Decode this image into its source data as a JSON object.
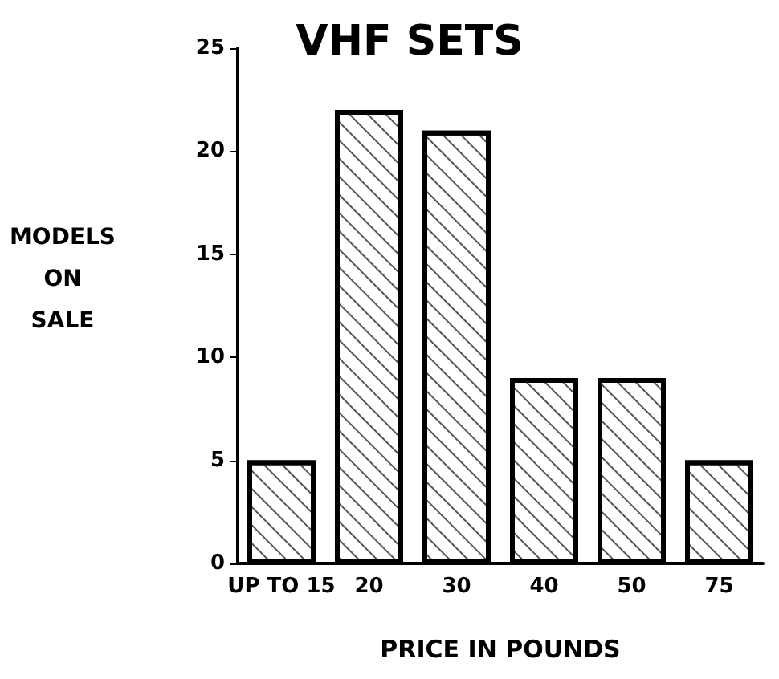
{
  "chart_data": {
    "type": "bar",
    "title": "VHF SETS",
    "xlabel": "PRICE IN POUNDS",
    "ylabel": "MODELS ON SALE",
    "categories": [
      "UP TO 15",
      "20",
      "30",
      "40",
      "50",
      "75"
    ],
    "values": [
      5,
      22,
      21,
      9,
      9,
      5
    ],
    "color": "#ffffff",
    "ylim": [
      0,
      25
    ],
    "yticks": [
      0,
      5,
      10,
      15,
      20,
      25
    ],
    "grid": false
  }
}
